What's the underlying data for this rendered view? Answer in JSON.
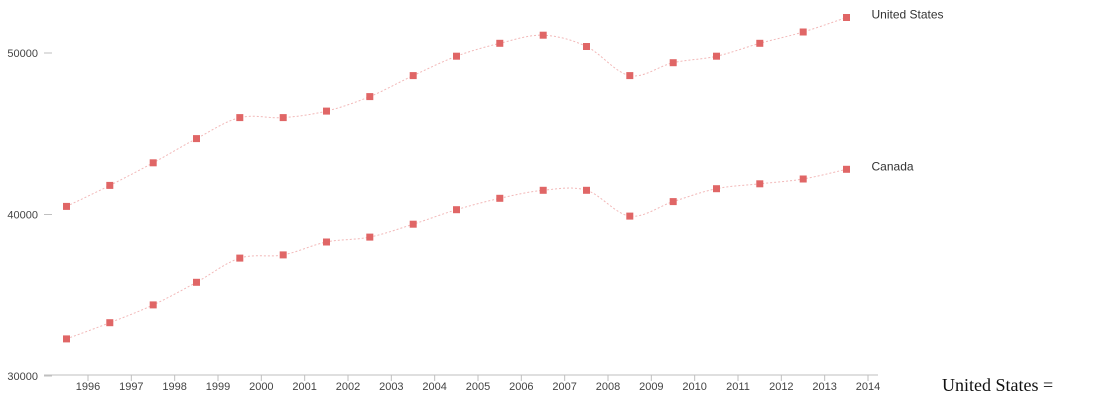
{
  "chart_data": {
    "type": "line",
    "title": "",
    "xlabel": "",
    "ylabel": "",
    "x_ticks": [
      "1996",
      "1997",
      "1998",
      "1999",
      "2000",
      "2001",
      "2002",
      "2003",
      "2004",
      "2005",
      "2006",
      "2007",
      "2008",
      "2009",
      "2010",
      "2011",
      "2012",
      "2013",
      "2014"
    ],
    "y_ticks": [
      30000,
      40000,
      50000
    ],
    "ylim": [
      30000,
      53000
    ],
    "series": [
      {
        "name": "United States",
        "color": "#e06666",
        "values": [
          40500,
          41800,
          43200,
          44700,
          46000,
          46000,
          46400,
          47300,
          48600,
          49800,
          50600,
          51100,
          50400,
          48600,
          49400,
          49800,
          50600,
          51300,
          52200
        ]
      },
      {
        "name": "Canada",
        "color": "#e06666",
        "values": [
          32300,
          33300,
          34400,
          35800,
          37300,
          37500,
          38300,
          38600,
          39400,
          40300,
          41000,
          41500,
          41500,
          39900,
          40800,
          41600,
          41900,
          42200,
          42800
        ]
      }
    ]
  },
  "trailing_text": "United States ="
}
